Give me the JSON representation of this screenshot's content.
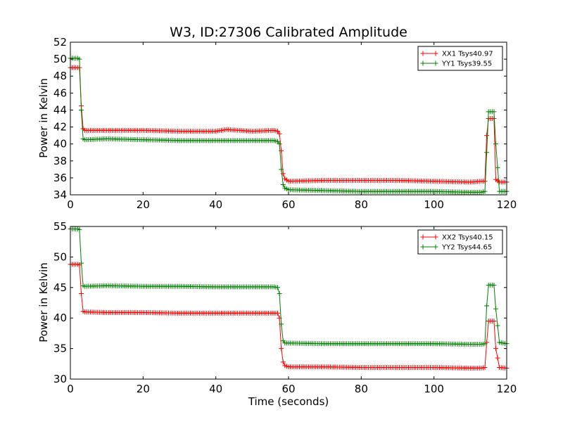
{
  "chart_data": [
    {
      "type": "line",
      "title": "W3, ID:27306 Calibrated Amplitude",
      "xlabel": "",
      "ylabel": "Power in Kelvin",
      "xlim": [
        0,
        120
      ],
      "ylim": [
        34,
        52
      ],
      "xticks": [
        "0",
        "20",
        "40",
        "60",
        "80",
        "100",
        "120"
      ],
      "yticks": [
        "34",
        "36",
        "38",
        "40",
        "42",
        "44",
        "46",
        "48",
        "50",
        "52"
      ],
      "legend_position": "top-right",
      "grid": false,
      "marker": "+",
      "series": [
        {
          "name": "XX1 Tsys40.97",
          "color": "#ff0000",
          "x": [
            0,
            2,
            2.5,
            3,
            3.5,
            4,
            10,
            20,
            30,
            40,
            43,
            50,
            56,
            57,
            57.5,
            58,
            58.5,
            59,
            60,
            70,
            80,
            90,
            100,
            110,
            113,
            114,
            114.5,
            115,
            116,
            116.5,
            117,
            118,
            120
          ],
          "y": [
            49.0,
            49.0,
            49.0,
            44.5,
            41.8,
            41.6,
            41.6,
            41.6,
            41.5,
            41.5,
            41.7,
            41.5,
            41.6,
            41.5,
            41.2,
            39.2,
            36.5,
            35.9,
            35.6,
            35.7,
            35.7,
            35.7,
            35.6,
            35.5,
            35.6,
            35.6,
            41.0,
            43.0,
            43.0,
            43.0,
            35.8,
            35.5,
            35.5
          ]
        },
        {
          "name": "YY1 Tsys39.55",
          "color": "#008000",
          "x": [
            0,
            2,
            2.5,
            3,
            3.5,
            4,
            10,
            20,
            30,
            40,
            50,
            56,
            57,
            57.5,
            58,
            58.5,
            59,
            60,
            70,
            80,
            90,
            100,
            110,
            113,
            114,
            114.5,
            115,
            116,
            116.5,
            117,
            118,
            120
          ],
          "y": [
            50.1,
            50.1,
            50.0,
            44.0,
            40.6,
            40.5,
            40.6,
            40.5,
            40.4,
            40.4,
            40.4,
            40.4,
            40.3,
            40.0,
            37.0,
            35.2,
            34.8,
            34.6,
            34.5,
            34.4,
            34.4,
            34.4,
            34.3,
            34.3,
            34.4,
            39.0,
            43.8,
            43.8,
            43.8,
            40.0,
            34.4,
            34.4
          ]
        }
      ]
    },
    {
      "type": "line",
      "title": "",
      "xlabel": "Time (seconds)",
      "ylabel": "Power in Kelvin",
      "xlim": [
        0,
        120
      ],
      "ylim": [
        30,
        55
      ],
      "xticks": [
        "0",
        "20",
        "40",
        "60",
        "80",
        "100",
        "120"
      ],
      "yticks": [
        "30",
        "35",
        "40",
        "45",
        "50",
        "55"
      ],
      "legend_position": "top-right",
      "grid": false,
      "marker": "+",
      "series": [
        {
          "name": "XX2 Tsys40.15",
          "color": "#ff0000",
          "x": [
            0,
            2,
            2.5,
            3,
            3.5,
            4,
            10,
            20,
            30,
            40,
            50,
            56,
            57,
            57.5,
            58,
            58.5,
            59,
            60,
            70,
            80,
            90,
            100,
            110,
            113,
            114,
            114.5,
            115,
            116,
            116.5,
            117,
            118,
            120
          ],
          "y": [
            48.8,
            48.8,
            48.7,
            44.0,
            41.1,
            41.0,
            40.9,
            40.9,
            40.8,
            40.8,
            40.8,
            40.8,
            40.8,
            40.0,
            35.0,
            32.8,
            32.2,
            32.0,
            32.0,
            31.9,
            31.9,
            31.9,
            31.8,
            31.8,
            31.9,
            36.0,
            39.5,
            39.5,
            39.5,
            35.0,
            31.9,
            31.8
          ]
        },
        {
          "name": "YY2 Tsys44.65",
          "color": "#008000",
          "x": [
            0,
            2,
            2.5,
            3,
            3.5,
            4,
            10,
            20,
            30,
            40,
            50,
            56,
            57,
            57.5,
            58,
            58.5,
            59,
            60,
            70,
            80,
            90,
            100,
            110,
            113,
            114,
            114.5,
            115,
            116,
            116.5,
            117,
            118,
            120
          ],
          "y": [
            54.6,
            54.6,
            54.5,
            49.0,
            45.3,
            45.2,
            45.3,
            45.2,
            45.2,
            45.1,
            45.1,
            45.1,
            45.0,
            44.0,
            39.0,
            36.3,
            35.9,
            35.9,
            35.8,
            35.8,
            35.8,
            35.8,
            35.7,
            35.7,
            35.8,
            42.0,
            45.4,
            45.4,
            45.4,
            41.5,
            36.0,
            35.8
          ]
        }
      ]
    }
  ]
}
